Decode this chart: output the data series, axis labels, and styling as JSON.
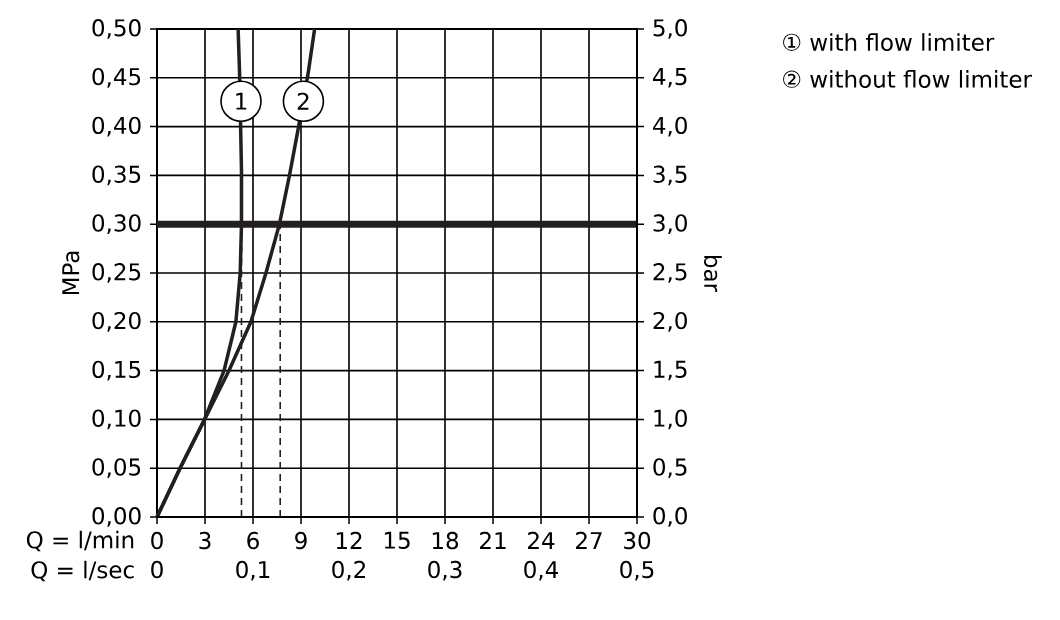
{
  "chart_data": {
    "type": "line",
    "xlabel": "Q = l/min",
    "x2label": "Q = l/sec",
    "ylabel": "MPa",
    "y2label": "bar",
    "xlim": [
      0,
      30
    ],
    "xticks": [
      0,
      3,
      6,
      9,
      12,
      15,
      18,
      21,
      24,
      27,
      30
    ],
    "x2lim": [
      0,
      0.5
    ],
    "x2ticks": [
      0,
      {
        "value": 0.1,
        "label": "0,1"
      },
      {
        "value": 0.2,
        "label": "0,2"
      },
      {
        "value": 0.3,
        "label": "0,3"
      },
      {
        "value": 0.4,
        "label": "0,4"
      },
      {
        "value": 0.5,
        "label": "0,5"
      }
    ],
    "ylim": [
      0,
      0.5
    ],
    "yticks": [
      {
        "value": 0,
        "label": "0,00"
      },
      {
        "value": 0.05,
        "label": "0,05"
      },
      {
        "value": 0.1,
        "label": "0,10"
      },
      {
        "value": 0.15,
        "label": "0,15"
      },
      {
        "value": 0.2,
        "label": "0,20"
      },
      {
        "value": 0.25,
        "label": "0,25"
      },
      {
        "value": 0.3,
        "label": "0,30"
      },
      {
        "value": 0.35,
        "label": "0,35"
      },
      {
        "value": 0.4,
        "label": "0,40"
      },
      {
        "value": 0.45,
        "label": "0,45"
      },
      {
        "value": 0.5,
        "label": "0,50"
      }
    ],
    "y2lim": [
      0,
      5
    ],
    "y2ticks": [
      {
        "value": 0,
        "label": "0,0"
      },
      {
        "value": 0.5,
        "label": "0,5"
      },
      {
        "value": 1,
        "label": "1,0"
      },
      {
        "value": 1.5,
        "label": "1,5"
      },
      {
        "value": 2,
        "label": "2,0"
      },
      {
        "value": 2.5,
        "label": "2,5"
      },
      {
        "value": 3,
        "label": "3,0"
      },
      {
        "value": 3.5,
        "label": "3,5"
      },
      {
        "value": 4,
        "label": "4,0"
      },
      {
        "value": 4.5,
        "label": "4,5"
      },
      {
        "value": 5,
        "label": "5,0"
      }
    ],
    "grid": true,
    "legend": "top right",
    "series": [
      {
        "name": "① with flow limiter",
        "color": "#231f20",
        "x": [
          0,
          1.47,
          2.94,
          4.19,
          4.93,
          5.2,
          5.28,
          5.28,
          5.16,
          5.07
        ],
        "values": [
          0,
          0.051,
          0.099,
          0.15,
          0.2,
          0.25,
          0.3,
          0.355,
          0.455,
          0.5
        ]
      },
      {
        "name": "② without flow limiter",
        "color": "#231f20",
        "x": [
          0,
          1.47,
          3.04,
          4.5,
          5.87,
          6.81,
          7.65,
          8.28,
          8.85,
          9.45,
          9.85
        ],
        "values": [
          0,
          0.051,
          0.102,
          0.15,
          0.2,
          0.25,
          0.3,
          0.35,
          0.4,
          0.455,
          0.5
        ]
      },
      {
        "color": "#231f20",
        "line_style": "dashed",
        "x": [
          5.28,
          5.28
        ],
        "values": [
          0,
          0.3
        ]
      },
      {
        "color": "#231f20",
        "line_style": "dashed",
        "x": [
          7.7,
          7.7
        ],
        "values": [
          0,
          0.3
        ]
      }
    ],
    "ref_lines": [
      {
        "axis": "y",
        "value": 0.3,
        "color": "#231f20"
      }
    ],
    "annotations": [
      {
        "text": "1",
        "x": 5.25,
        "y": 0.426
      },
      {
        "text": "2",
        "x": 9.15,
        "y": 0.426
      }
    ]
  }
}
